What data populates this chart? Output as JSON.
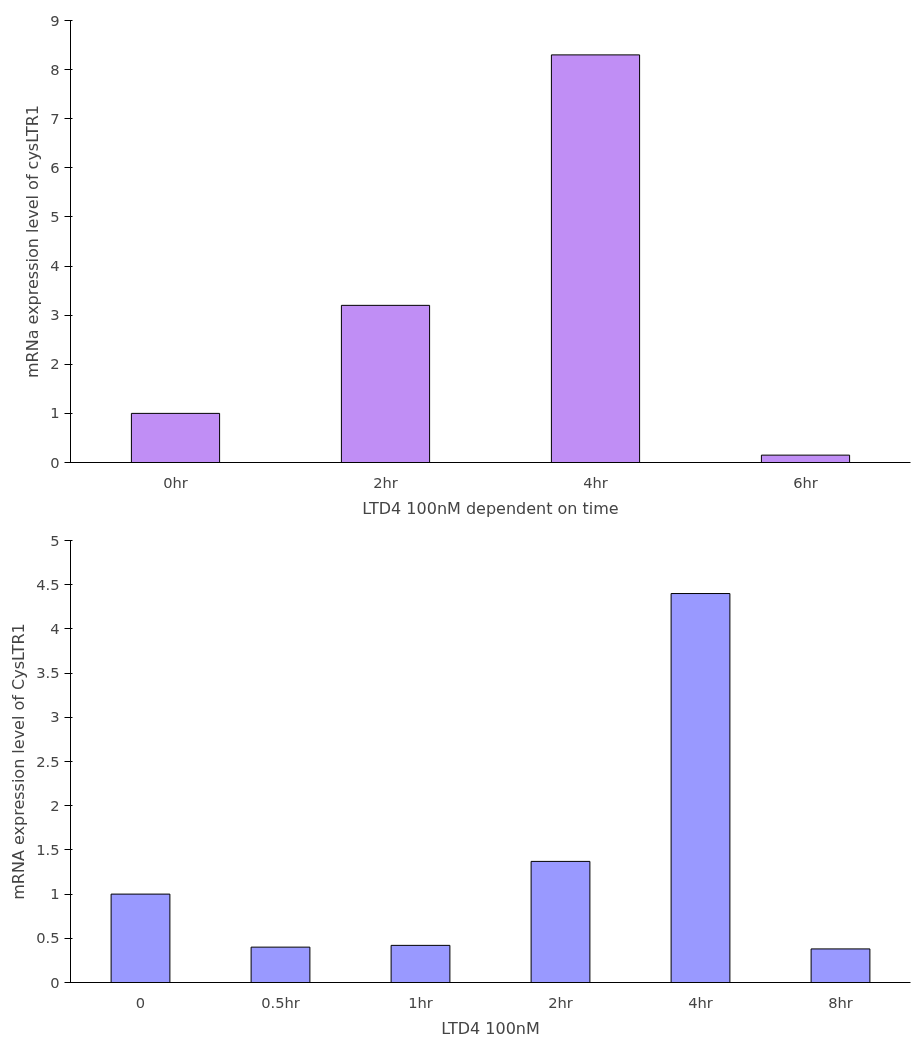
{
  "chart_data": [
    {
      "type": "bar",
      "xlabel": "LTD4 100nM dependent on time",
      "ylabel": "mRNa expression level of cysLTR1",
      "categories": [
        "0hr",
        "2hr",
        "4hr",
        "6hr"
      ],
      "values": [
        1.0,
        3.2,
        8.3,
        0.15
      ],
      "color": "#c08ef5",
      "ylim": [
        0,
        9
      ],
      "yticks": [
        0,
        1,
        2,
        3,
        4,
        5,
        6,
        7,
        8,
        9
      ]
    },
    {
      "type": "bar",
      "xlabel": "LTD4 100nM",
      "ylabel": "mRNA expression level of CysLTR1",
      "categories": [
        "0",
        "0.5hr",
        "1hr",
        "2hr",
        "4hr",
        "8hr"
      ],
      "values": [
        1.0,
        0.4,
        0.42,
        1.37,
        4.4,
        0.38
      ],
      "color": "#9999ff",
      "ylim": [
        0,
        5
      ],
      "yticks": [
        0,
        0.5,
        1,
        1.5,
        2,
        2.5,
        3,
        3.5,
        4,
        4.5,
        5
      ]
    }
  ]
}
